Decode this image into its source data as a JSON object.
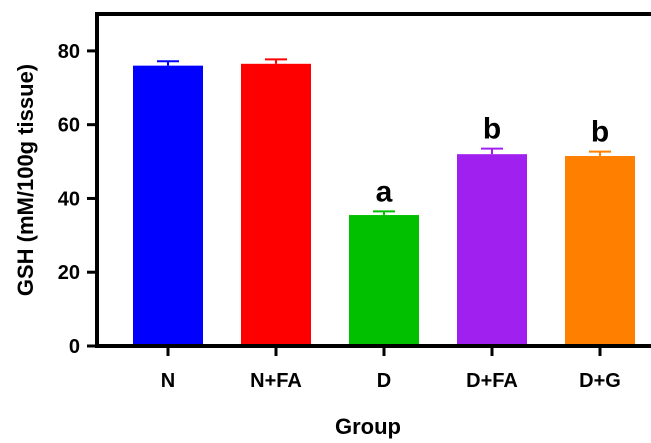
{
  "chart_data": {
    "type": "bar",
    "xlabel": "Group",
    "ylabel": "GSH (mM/100g tissue)",
    "ylim": [
      0,
      90
    ],
    "yticks": [
      0,
      20,
      40,
      60,
      80
    ],
    "categories": [
      "N",
      "N+FA",
      "D",
      "D+FA",
      "D+G"
    ],
    "values": [
      76,
      76.5,
      35.5,
      52,
      51.5
    ],
    "errors": [
      1.2,
      1.2,
      1.0,
      1.5,
      1.2
    ],
    "colors": [
      "#0000ff",
      "#ff0000",
      "#00c000",
      "#a020f0",
      "#ff8000"
    ],
    "significance": [
      "",
      "",
      "a",
      "b",
      "b"
    ],
    "grid": false,
    "legend": "none"
  }
}
